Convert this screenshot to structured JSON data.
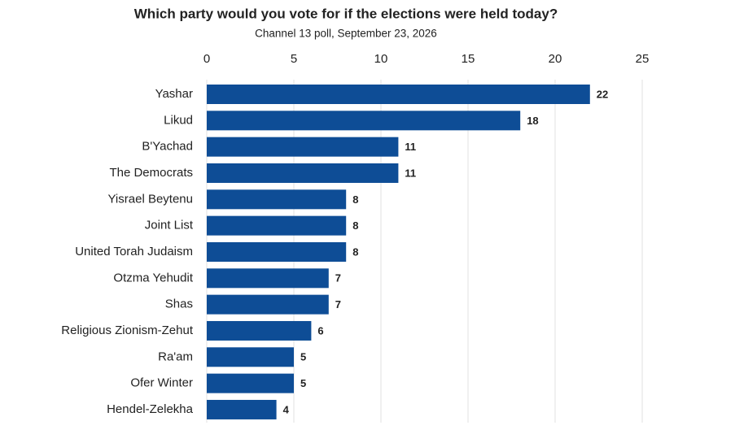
{
  "chart_data": {
    "type": "bar",
    "orientation": "horizontal",
    "title": "Which party would you vote for if the elections were held today?",
    "subtitle": "Channel 13 poll, September 23, 2026",
    "categories": [
      "Yashar",
      "Likud",
      "B'Yachad",
      "The Democrats",
      "Yisrael Beytenu",
      "Joint List",
      "United Torah Judaism",
      "Otzma Yehudit",
      "Shas",
      "Religious Zionism-Zehut",
      "Ra'am",
      "Ofer Winter",
      "Hendel-Zelekha"
    ],
    "values": [
      22,
      18,
      11,
      11,
      8,
      8,
      8,
      7,
      7,
      6,
      5,
      5,
      4
    ],
    "color": "#0e4d96",
    "xlim": [
      0,
      25
    ],
    "xticks": [
      0,
      5,
      10,
      15,
      20,
      25
    ],
    "grid": true
  }
}
